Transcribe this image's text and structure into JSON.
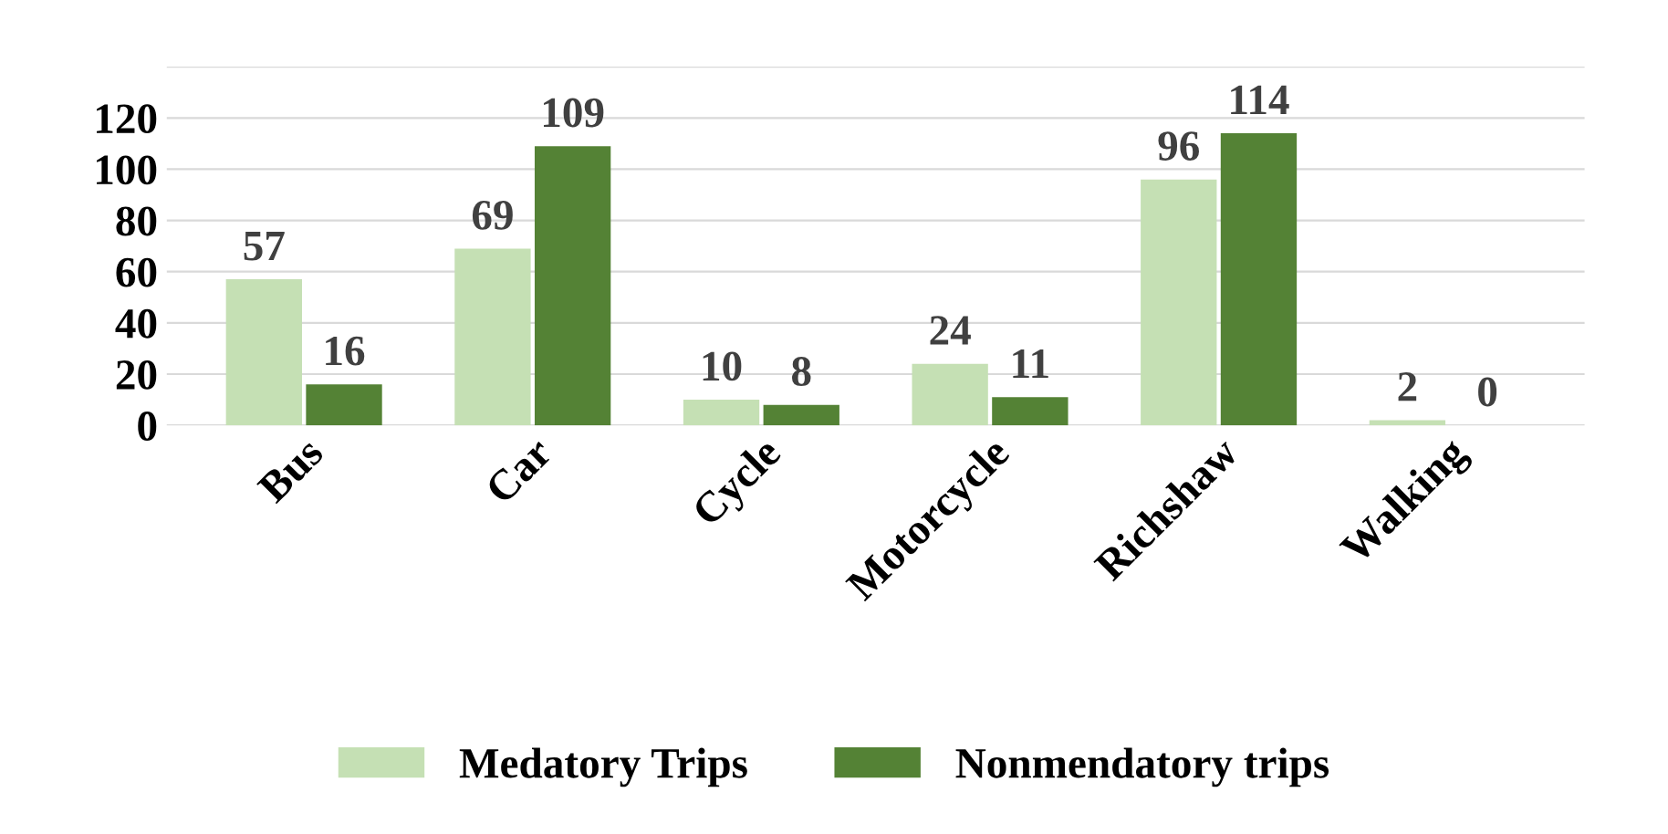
{
  "chart_data": {
    "type": "bar",
    "categories": [
      "Bus",
      "Car",
      "Cycle",
      "Motorcycle",
      "Richshaw",
      "Walking"
    ],
    "series": [
      {
        "name": "Medatory Trips",
        "color": "#c5e0b4",
        "values": [
          57,
          69,
          10,
          24,
          96,
          2
        ]
      },
      {
        "name": "Nonmendatory trips",
        "color": "#548235",
        "values": [
          16,
          109,
          8,
          11,
          114,
          0
        ]
      }
    ],
    "ylim": [
      0,
      140
    ],
    "yticks": [
      0,
      20,
      40,
      60,
      80,
      100,
      120,
      {
        "value": 140,
        "label": null
      }
    ],
    "grid": "y",
    "legend": "bottom",
    "data_labels": true
  }
}
